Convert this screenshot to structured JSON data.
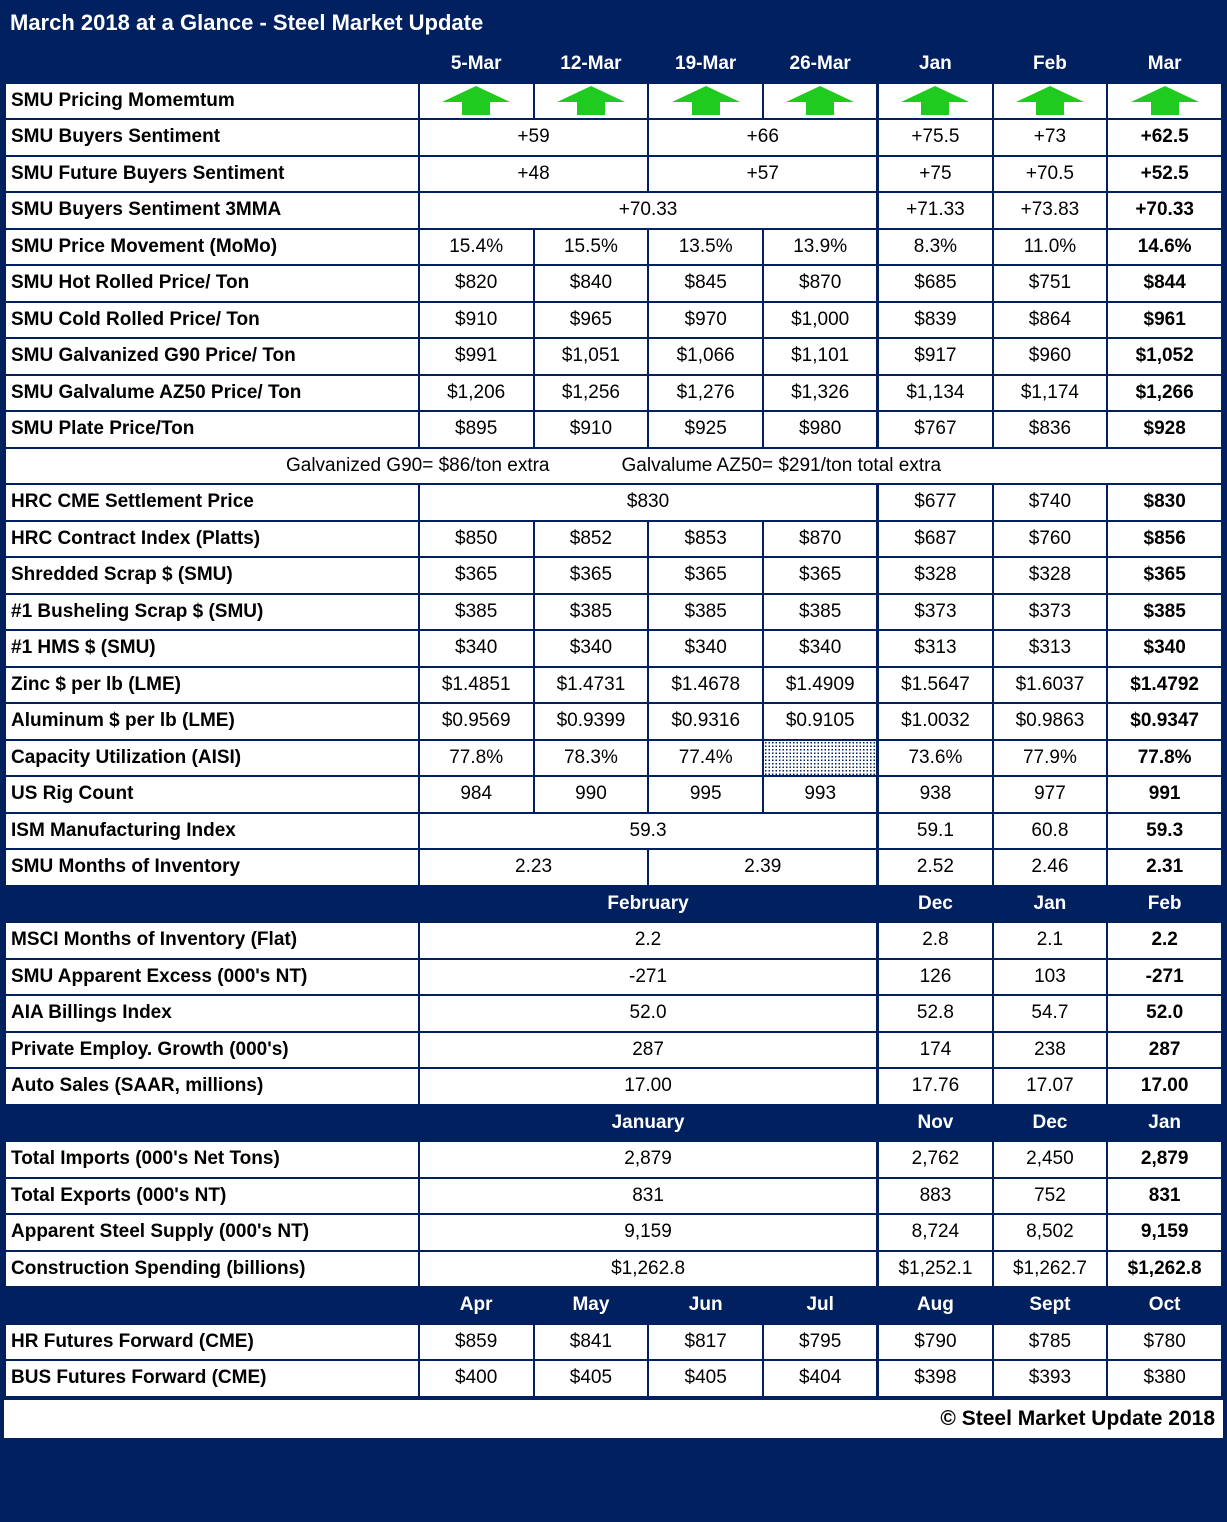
{
  "title": "March 2018 at a Glance - Steel Market Update",
  "footer": "© Steel Market Update 2018",
  "colors": {
    "navy": "#002060",
    "arrow_green": "#1ecb1e",
    "cell_bg": "#ffffff",
    "text": "#000000"
  },
  "icons": {
    "up_arrow": "green block arrow pointing up (pricing momentum rising)"
  },
  "table": {
    "rows": [
      {
        "type": "months",
        "cols": [
          "5-Mar",
          "12-Mar",
          "19-Mar",
          "26-Mar",
          "Jan",
          "Feb",
          "Mar"
        ]
      },
      {
        "type": "data",
        "label": "SMU Pricing Momemtum",
        "cells": [
          {
            "arrow": true
          },
          {
            "arrow": true
          },
          {
            "arrow": true
          },
          {
            "arrow": true
          },
          {
            "arrow": true
          },
          {
            "arrow": true
          },
          {
            "arrow": true
          }
        ]
      },
      {
        "type": "data",
        "label": "SMU Buyers Sentiment",
        "cells": [
          {
            "text": "+59",
            "span": 2
          },
          {
            "text": "+66",
            "span": 2
          },
          {
            "text": "+75.5"
          },
          {
            "text": "+73"
          },
          {
            "text": "+62.5",
            "bold": true
          }
        ]
      },
      {
        "type": "data",
        "label": "SMU Future Buyers Sentiment",
        "cells": [
          {
            "text": "+48",
            "span": 2
          },
          {
            "text": "+57",
            "span": 2
          },
          {
            "text": "+75"
          },
          {
            "text": "+70.5"
          },
          {
            "text": "+52.5",
            "bold": true
          }
        ]
      },
      {
        "type": "data",
        "label": "SMU Buyers Sentiment 3MMA",
        "cells": [
          {
            "text": "+70.33",
            "span": 4
          },
          {
            "text": "+71.33"
          },
          {
            "text": "+73.83"
          },
          {
            "text": "+70.33",
            "bold": true
          }
        ]
      },
      {
        "type": "data",
        "label": "SMU Price Movement (MoMo)",
        "cells": [
          {
            "text": "15.4%"
          },
          {
            "text": "15.5%"
          },
          {
            "text": "13.5%"
          },
          {
            "text": "13.9%"
          },
          {
            "text": "8.3%"
          },
          {
            "text": "11.0%"
          },
          {
            "text": "14.6%",
            "bold": true
          }
        ]
      },
      {
        "type": "data",
        "label": "SMU Hot Rolled Price/ Ton",
        "cells": [
          {
            "text": "$820"
          },
          {
            "text": "$840"
          },
          {
            "text": "$845"
          },
          {
            "text": "$870"
          },
          {
            "text": "$685"
          },
          {
            "text": "$751"
          },
          {
            "text": "$844",
            "bold": true
          }
        ]
      },
      {
        "type": "data",
        "label": "SMU Cold Rolled Price/ Ton",
        "cells": [
          {
            "text": "$910"
          },
          {
            "text": "$965"
          },
          {
            "text": "$970"
          },
          {
            "text": "$1,000"
          },
          {
            "text": "$839"
          },
          {
            "text": "$864"
          },
          {
            "text": "$961",
            "bold": true
          }
        ]
      },
      {
        "type": "data",
        "label": "SMU Galvanized G90 Price/ Ton",
        "cells": [
          {
            "text": "$991"
          },
          {
            "text": "$1,051"
          },
          {
            "text": "$1,066"
          },
          {
            "text": "$1,101"
          },
          {
            "text": "$917"
          },
          {
            "text": "$960"
          },
          {
            "text": "$1,052",
            "bold": true
          }
        ]
      },
      {
        "type": "data",
        "label": "SMU Galvalume AZ50 Price/ Ton",
        "cells": [
          {
            "text": "$1,206"
          },
          {
            "text": "$1,256"
          },
          {
            "text": "$1,276"
          },
          {
            "text": "$1,326"
          },
          {
            "text": "$1,134"
          },
          {
            "text": "$1,174"
          },
          {
            "text": "$1,266",
            "bold": true
          }
        ]
      },
      {
        "type": "data",
        "label": "SMU Plate Price/Ton",
        "cells": [
          {
            "text": "$895"
          },
          {
            "text": "$910"
          },
          {
            "text": "$925"
          },
          {
            "text": "$980"
          },
          {
            "text": "$767"
          },
          {
            "text": "$836"
          },
          {
            "text": "$928",
            "bold": true
          }
        ]
      },
      {
        "type": "note",
        "parts": [
          "Galvanized G90= $86/ton extra",
          "Galvalume AZ50= $291/ton total extra"
        ]
      },
      {
        "type": "data",
        "label": "HRC CME Settlement Price",
        "cells": [
          {
            "text": "$830",
            "span": 4
          },
          {
            "text": "$677"
          },
          {
            "text": "$740"
          },
          {
            "text": "$830",
            "bold": true
          }
        ]
      },
      {
        "type": "data",
        "label": "HRC Contract Index (Platts)",
        "cells": [
          {
            "text": "$850"
          },
          {
            "text": "$852"
          },
          {
            "text": "$853"
          },
          {
            "text": "$870"
          },
          {
            "text": "$687"
          },
          {
            "text": "$760"
          },
          {
            "text": "$856",
            "bold": true
          }
        ]
      },
      {
        "type": "data",
        "label": "Shredded Scrap $ (SMU)",
        "cells": [
          {
            "text": "$365"
          },
          {
            "text": "$365"
          },
          {
            "text": "$365"
          },
          {
            "text": "$365"
          },
          {
            "text": "$328"
          },
          {
            "text": "$328"
          },
          {
            "text": "$365",
            "bold": true
          }
        ]
      },
      {
        "type": "data",
        "label": "#1 Busheling Scrap $ (SMU)",
        "cells": [
          {
            "text": "$385"
          },
          {
            "text": "$385"
          },
          {
            "text": "$385"
          },
          {
            "text": "$385"
          },
          {
            "text": "$373"
          },
          {
            "text": "$373"
          },
          {
            "text": "$385",
            "bold": true
          }
        ]
      },
      {
        "type": "data",
        "label": "#1 HMS $ (SMU)",
        "cells": [
          {
            "text": "$340"
          },
          {
            "text": "$340"
          },
          {
            "text": "$340"
          },
          {
            "text": "$340"
          },
          {
            "text": "$313"
          },
          {
            "text": "$313"
          },
          {
            "text": "$340",
            "bold": true
          }
        ]
      },
      {
        "type": "data",
        "label": "Zinc $ per lb (LME)",
        "cells": [
          {
            "text": "$1.4851"
          },
          {
            "text": "$1.4731"
          },
          {
            "text": "$1.4678"
          },
          {
            "text": "$1.4909"
          },
          {
            "text": "$1.5647"
          },
          {
            "text": "$1.6037"
          },
          {
            "text": "$1.4792",
            "bold": true
          }
        ]
      },
      {
        "type": "data",
        "label": "Aluminum $ per lb (LME)",
        "cells": [
          {
            "text": "$0.9569"
          },
          {
            "text": "$0.9399"
          },
          {
            "text": "$0.9316"
          },
          {
            "text": "$0.9105"
          },
          {
            "text": "$1.0032"
          },
          {
            "text": "$0.9863"
          },
          {
            "text": "$0.9347",
            "bold": true
          }
        ]
      },
      {
        "type": "data",
        "label": "Capacity Utilization (AISI)",
        "cells": [
          {
            "text": "77.8%"
          },
          {
            "text": "78.3%"
          },
          {
            "text": "77.4%"
          },
          {
            "hatch": true
          },
          {
            "text": "73.6%"
          },
          {
            "text": "77.9%"
          },
          {
            "text": "77.8%",
            "bold": true
          }
        ]
      },
      {
        "type": "data",
        "label": "US Rig Count",
        "cells": [
          {
            "text": "984"
          },
          {
            "text": "990"
          },
          {
            "text": "995"
          },
          {
            "text": "993"
          },
          {
            "text": "938"
          },
          {
            "text": "977"
          },
          {
            "text": "991",
            "bold": true
          }
        ]
      },
      {
        "type": "data",
        "label": "ISM Manufacturing Index",
        "cells": [
          {
            "text": "59.3",
            "span": 4
          },
          {
            "text": "59.1"
          },
          {
            "text": "60.8"
          },
          {
            "text": "59.3",
            "bold": true
          }
        ]
      },
      {
        "type": "data",
        "label": "SMU Months of Inventory",
        "cells": [
          {
            "text": "2.23",
            "span": 2
          },
          {
            "text": "2.39",
            "span": 2
          },
          {
            "text": "2.52"
          },
          {
            "text": "2.46"
          },
          {
            "text": "2.31",
            "bold": true
          }
        ]
      },
      {
        "type": "section",
        "label": "February",
        "months": [
          "Dec",
          "Jan",
          "Feb"
        ]
      },
      {
        "type": "data",
        "label": "MSCI Months of Inventory (Flat)",
        "cells": [
          {
            "text": "2.2",
            "span": 4
          },
          {
            "text": "2.8"
          },
          {
            "text": "2.1"
          },
          {
            "text": "2.2",
            "bold": true
          }
        ]
      },
      {
        "type": "data",
        "label": "SMU Apparent Excess (000's NT)",
        "cells": [
          {
            "text": "-271",
            "span": 4
          },
          {
            "text": "126"
          },
          {
            "text": "103"
          },
          {
            "text": "-271",
            "bold": true
          }
        ]
      },
      {
        "type": "data",
        "label": "AIA Billings Index",
        "cells": [
          {
            "text": "52.0",
            "span": 4
          },
          {
            "text": "52.8"
          },
          {
            "text": "54.7"
          },
          {
            "text": "52.0",
            "bold": true
          }
        ]
      },
      {
        "type": "data",
        "label": "Private Employ. Growth (000's)",
        "cells": [
          {
            "text": "287",
            "span": 4
          },
          {
            "text": "174"
          },
          {
            "text": "238"
          },
          {
            "text": "287",
            "bold": true
          }
        ]
      },
      {
        "type": "data",
        "label": "Auto Sales (SAAR, millions)",
        "cells": [
          {
            "text": "17.00",
            "span": 4
          },
          {
            "text": "17.76"
          },
          {
            "text": "17.07"
          },
          {
            "text": "17.00",
            "bold": true
          }
        ]
      },
      {
        "type": "section",
        "label": "January",
        "months": [
          "Nov",
          "Dec",
          "Jan"
        ]
      },
      {
        "type": "data",
        "label": "Total Imports (000's Net Tons)",
        "cells": [
          {
            "text": "2,879",
            "span": 4
          },
          {
            "text": "2,762"
          },
          {
            "text": "2,450"
          },
          {
            "text": "2,879",
            "bold": true
          }
        ]
      },
      {
        "type": "data",
        "label": "Total Exports (000's NT)",
        "cells": [
          {
            "text": "831",
            "span": 4
          },
          {
            "text": "883"
          },
          {
            "text": "752"
          },
          {
            "text": "831",
            "bold": true
          }
        ]
      },
      {
        "type": "data",
        "label": "Apparent Steel Supply (000's NT)",
        "cells": [
          {
            "text": "9,159",
            "span": 4
          },
          {
            "text": "8,724"
          },
          {
            "text": "8,502"
          },
          {
            "text": "9,159",
            "bold": true
          }
        ]
      },
      {
        "type": "data",
        "label": "Construction Spending (billions)",
        "cells": [
          {
            "text": "$1,262.8",
            "span": 4
          },
          {
            "text": "$1,252.1"
          },
          {
            "text": "$1,262.7"
          },
          {
            "text": "$1,262.8",
            "bold": true
          }
        ]
      },
      {
        "type": "months",
        "cols": [
          "Apr",
          "May",
          "Jun",
          "Jul",
          "Aug",
          "Sept",
          "Oct"
        ]
      },
      {
        "type": "data",
        "label": "HR Futures Forward (CME)",
        "cells": [
          {
            "text": "$859"
          },
          {
            "text": "$841"
          },
          {
            "text": "$817"
          },
          {
            "text": "$795"
          },
          {
            "text": "$790"
          },
          {
            "text": "$785"
          },
          {
            "text": "$780"
          }
        ]
      },
      {
        "type": "data",
        "label": "BUS Futures Forward (CME)",
        "cells": [
          {
            "text": "$400"
          },
          {
            "text": "$405"
          },
          {
            "text": "$405"
          },
          {
            "text": "$404"
          },
          {
            "text": "$398"
          },
          {
            "text": "$393"
          },
          {
            "text": "$380"
          }
        ]
      }
    ]
  }
}
